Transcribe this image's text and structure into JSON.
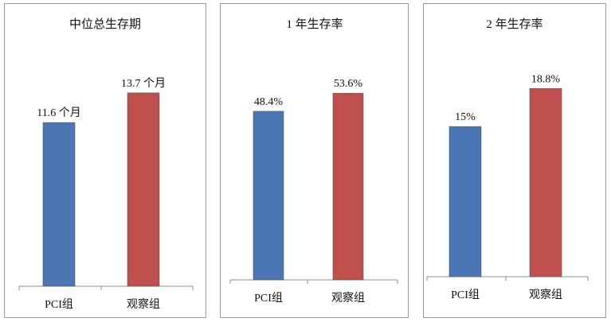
{
  "chart_data": [
    {
      "type": "bar",
      "title": "中位总生存期",
      "categories": [
        "PCI组",
        "观察组"
      ],
      "values": [
        11.6,
        13.7
      ],
      "data_labels": [
        "11.6 个月",
        "13.7 个月"
      ],
      "colors": [
        "#4a77b4",
        "#c0504d"
      ],
      "unit": "个月",
      "ylim": [
        0,
        16
      ],
      "grid": false,
      "legend": "none"
    },
    {
      "type": "bar",
      "title": "1 年生存率",
      "categories": [
        "PCI组",
        "观察组"
      ],
      "values": [
        48.4,
        53.6
      ],
      "data_labels": [
        "48.4%",
        "53.6%"
      ],
      "colors": [
        "#4a77b4",
        "#c0504d"
      ],
      "unit": "%",
      "ylim": [
        0,
        63
      ],
      "grid": false,
      "legend": "none"
    },
    {
      "type": "bar",
      "title": "2 年生存率",
      "categories": [
        "PCI组",
        "观察组"
      ],
      "values": [
        15,
        18.8
      ],
      "data_labels": [
        "15%",
        "18.8%"
      ],
      "colors": [
        "#4a77b4",
        "#c0504d"
      ],
      "unit": "%",
      "ylim": [
        0,
        21.6
      ],
      "grid": false,
      "legend": "none"
    }
  ]
}
